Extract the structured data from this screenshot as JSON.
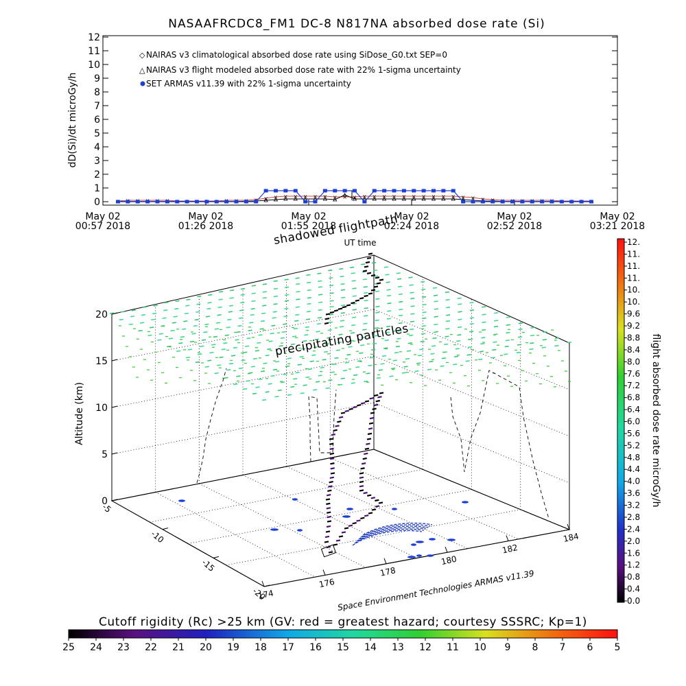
{
  "chart_data": [
    {
      "type": "line",
      "title": "NASAAFRCDC8_FM1 DC-8   N817NA absorbed dose rate (Si)",
      "ylabel": "dD(Si)/dt microGy/h",
      "xlabel": "UT time",
      "ylim": [
        0,
        12
      ],
      "yticks": [
        "0",
        "1",
        "2",
        "3",
        "4",
        "5",
        "6",
        "7",
        "8",
        "9",
        "10",
        "11",
        "12"
      ],
      "xticks": [
        {
          "date": "May 02",
          "time": "00:57 2018"
        },
        {
          "date": "May 02",
          "time": "01:26 2018"
        },
        {
          "date": "May 02",
          "time": "01:55 2018"
        },
        {
          "date": "May 02",
          "time": "02:24 2018"
        },
        {
          "date": "May 02",
          "time": "02:52 2018"
        },
        {
          "date": "May 02",
          "time": "03:21 2018"
        }
      ],
      "legend_position": "top-left",
      "series": [
        {
          "name": "NAIRAS v3 climatological absorbed dose rate using SiDose_G0.txt SEP=0",
          "color": "#d04040",
          "marker": "x",
          "x": [
            0.0,
            0.05,
            0.1,
            0.15,
            0.2,
            0.25,
            0.3,
            0.35,
            0.4,
            0.45,
            0.5,
            0.55,
            0.6,
            0.65,
            0.7,
            0.75,
            0.8,
            0.85,
            0.9,
            0.95,
            1.0,
            1.05,
            1.1,
            1.15,
            1.2,
            1.25,
            1.3,
            1.35,
            1.4,
            1.45,
            1.5,
            1.55,
            1.6,
            1.65,
            1.7,
            1.75,
            1.8,
            1.85,
            1.9,
            1.95,
            2.0,
            2.05,
            2.1,
            2.15,
            2.2,
            2.25,
            2.3,
            2.35,
            2.4
          ],
          "y": [
            0.05,
            0.1,
            0.1,
            0.1,
            0.1,
            0.1,
            0.05,
            0.05,
            0.05,
            0.05,
            0.05,
            0.1,
            0.1,
            0.1,
            0.15,
            0.25,
            0.35,
            0.4,
            0.4,
            0.4,
            0.4,
            0.4,
            0.35,
            0.35,
            0.35,
            0.4,
            0.4,
            0.4,
            0.4,
            0.4,
            0.4,
            0.4,
            0.4,
            0.4,
            0.4,
            0.35,
            0.3,
            0.2,
            0.15,
            0.1,
            0.1,
            0.1,
            0.1,
            0.1,
            0.1,
            0.05,
            0.05,
            0.05,
            0.05
          ]
        },
        {
          "name": "NAIRAS v3 flight modeled absorbed dose rate with 22% 1-sigma uncertainty",
          "color": "#000000",
          "marker": "triangle",
          "x": [
            0.0,
            0.05,
            0.1,
            0.15,
            0.2,
            0.25,
            0.3,
            0.35,
            0.4,
            0.45,
            0.5,
            0.55,
            0.6,
            0.65,
            0.7,
            0.75,
            0.8,
            0.85,
            0.9,
            0.95,
            1.0,
            1.05,
            1.1,
            1.15,
            1.2,
            1.25,
            1.3,
            1.35,
            1.4,
            1.45,
            1.5,
            1.55,
            1.6,
            1.65,
            1.7,
            1.75,
            1.8,
            1.85,
            1.9,
            1.95,
            2.0,
            2.05,
            2.1,
            2.15,
            2.2,
            2.25,
            2.3,
            2.35,
            2.4
          ],
          "y": [
            0.02,
            0.02,
            0.02,
            0.02,
            0.02,
            0.02,
            0.02,
            0.02,
            0.02,
            0.02,
            0.02,
            0.02,
            0.02,
            0.03,
            0.05,
            0.1,
            0.15,
            0.2,
            0.2,
            0.2,
            0.2,
            0.2,
            0.15,
            0.5,
            0.2,
            0.2,
            0.2,
            0.2,
            0.2,
            0.2,
            0.2,
            0.2,
            0.2,
            0.2,
            0.2,
            0.15,
            0.1,
            0.05,
            0.05,
            0.02,
            0.02,
            0.02,
            0.02,
            0.02,
            0.02,
            0.02,
            0.02,
            0.02,
            0.02
          ]
        },
        {
          "name": "SET ARMAS v11.39 with 22% 1-sigma uncertainty",
          "color": "#1f3fd4",
          "marker": "dot",
          "x": [
            0.0,
            0.05,
            0.1,
            0.15,
            0.2,
            0.25,
            0.3,
            0.35,
            0.4,
            0.45,
            0.5,
            0.55,
            0.6,
            0.65,
            0.7,
            0.75,
            0.8,
            0.85,
            0.9,
            0.95,
            1.0,
            1.05,
            1.1,
            1.15,
            1.2,
            1.25,
            1.3,
            1.35,
            1.4,
            1.45,
            1.5,
            1.55,
            1.6,
            1.65,
            1.7,
            1.75,
            1.8,
            1.85,
            1.9,
            1.95,
            2.0,
            2.05,
            2.1,
            2.15,
            2.2,
            2.25,
            2.3,
            2.35,
            2.4
          ],
          "y": [
            0,
            0,
            0,
            0,
            0,
            0,
            0,
            0,
            0,
            0,
            0,
            0,
            0,
            0,
            0,
            0.8,
            0.8,
            0.8,
            0.8,
            0,
            0,
            0.8,
            0.8,
            0.8,
            0.8,
            0,
            0.8,
            0.8,
            0.8,
            0.8,
            0.8,
            0.8,
            0.8,
            0.8,
            0.8,
            0,
            0,
            0,
            0,
            0,
            0,
            0,
            0,
            0,
            0,
            0,
            0,
            0,
            0
          ]
        }
      ]
    },
    {
      "type": "scatter",
      "xlabel": "",
      "ylabel": "Altitude (km)",
      "zlim": [
        0,
        20
      ],
      "zticks": [
        "0",
        "5",
        "10",
        "15",
        "20"
      ],
      "lon_ticks": [
        "174",
        "176",
        "178",
        "180",
        "182",
        "184"
      ],
      "lat_ticks": [
        "-5",
        "-10",
        "-15",
        "-20"
      ],
      "annotations": [
        "shadowed flightpath",
        "precipitating particles",
        "UT time",
        "Space Environment Technologies ARMAS v11.39"
      ],
      "colorbar": {
        "label": "flight absorbed dose rate microGy/h",
        "ticks": [
          "0.0",
          "0.4",
          "0.8",
          "1.2",
          "1.6",
          "2.0",
          "2.4",
          "2.8",
          "3.2",
          "3.6",
          "4.0",
          "4.4",
          "4.8",
          "5.2",
          "5.6",
          "6.0",
          "6.4",
          "6.8",
          "7.2",
          "7.6",
          "8.0",
          "8.4",
          "8.8",
          "9.2",
          "9.6",
          "10.",
          "10.",
          "11.",
          "11.",
          "11.",
          "12."
        ]
      },
      "rigidity_bar": {
        "label": "Cutoff rigidity (Rc) >25 km (GV: red = greatest hazard; courtesy SSSRC; Kp=1)",
        "ticks": [
          "25",
          "24",
          "23",
          "22",
          "21",
          "20",
          "19",
          "18",
          "17",
          "16",
          "15",
          "14",
          "13",
          "12",
          "11",
          "10",
          "9",
          "8",
          "7",
          "6",
          "5"
        ]
      }
    }
  ],
  "colors": {
    "flight_track": "#000000",
    "precip_grid": "#40d890",
    "rigidity_low": "#1f3fd4"
  }
}
